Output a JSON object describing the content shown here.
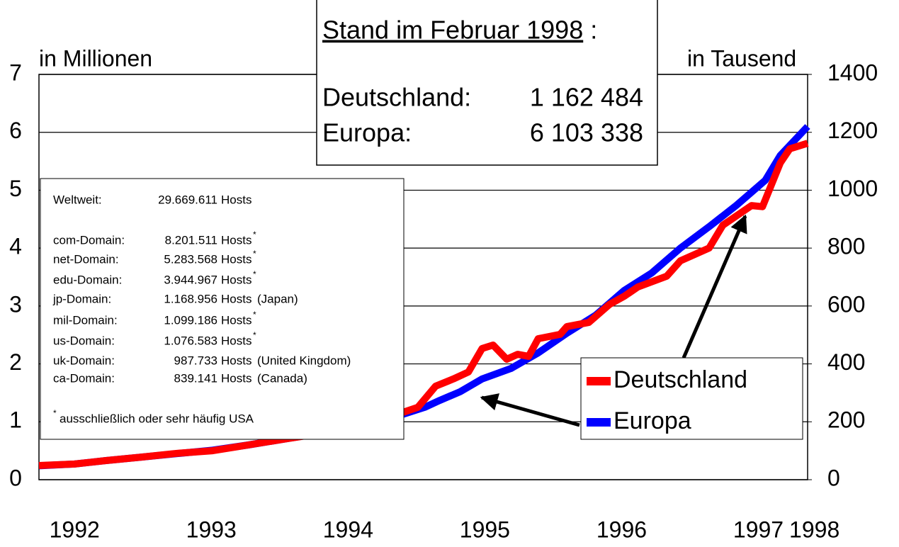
{
  "chart_data": {
    "type": "line",
    "ylabel": "in Millionen",
    "y2label": "in Tausend",
    "ylim": [
      0,
      7
    ],
    "yticks": [
      0,
      1,
      2,
      3,
      4,
      5,
      6,
      7
    ],
    "y2lim": [
      0,
      1400
    ],
    "y2ticks": [
      0,
      200,
      400,
      600,
      800,
      1000,
      1200,
      1400
    ],
    "xlim": [
      1991.74,
      1997.36
    ],
    "xticks": [
      {
        "value": 1992,
        "label": "1992"
      },
      {
        "value": 1993,
        "label": "1993"
      },
      {
        "value": 1994,
        "label": "1994"
      },
      {
        "value": 1995,
        "label": "1995"
      },
      {
        "value": 1996,
        "label": "1996"
      },
      {
        "value": 1997,
        "label": "1997"
      },
      {
        "value": 1997.41,
        "label": "1998"
      }
    ],
    "grid": true,
    "series": [
      {
        "name": "Europa",
        "color": "#0000ff",
        "x": [
          1991.74,
          1992,
          1992.23,
          1992.49,
          1992.75,
          1993.01,
          1993.27,
          1993.53,
          1993.79,
          1994.05,
          1994.31,
          1994.56,
          1994.67,
          1994.82,
          1994.98,
          1995.19,
          1995.39,
          1995.6,
          1995.81,
          1996.02,
          1996.22,
          1996.43,
          1996.64,
          1996.84,
          1997.05,
          1997.16,
          1997.36
        ],
        "values": [
          0.24,
          0.27,
          0.33,
          0.39,
          0.45,
          0.51,
          0.6,
          0.7,
          0.8,
          0.92,
          1.06,
          1.25,
          1.37,
          1.52,
          1.74,
          1.92,
          2.19,
          2.53,
          2.84,
          3.27,
          3.57,
          4.0,
          4.37,
          4.74,
          5.17,
          5.6,
          6.1
        ]
      },
      {
        "name": "Deutschland",
        "color": "#ff0000",
        "axis": "y2",
        "x": [
          1991.74,
          1992,
          1992.23,
          1992.49,
          1992.75,
          1993.01,
          1993.27,
          1993.53,
          1993.79,
          1994.05,
          1994.31,
          1994.51,
          1994.64,
          1994.77,
          1994.88,
          1994.98,
          1995.06,
          1995.16,
          1995.24,
          1995.32,
          1995.39,
          1995.55,
          1995.6,
          1995.76,
          1995.91,
          1996.02,
          1996.12,
          1996.33,
          1996.43,
          1996.64,
          1996.74,
          1996.95,
          1997.03,
          1997.16,
          1997.23,
          1997.36
        ],
        "values": [
          49,
          54,
          66,
          78,
          91,
          100,
          120,
          140,
          159,
          184,
          218,
          250,
          323,
          348,
          372,
          453,
          465,
          416,
          433,
          426,
          487,
          502,
          529,
          543,
          605,
          634,
          666,
          703,
          756,
          800,
          879,
          947,
          943,
          1094,
          1143,
          1162
        ]
      }
    ],
    "box": {
      "heading": "Stand im Februar 1998",
      "colon": ":",
      "rows": [
        [
          "Deutschland:",
          "1 162 484"
        ],
        [
          "Europa:",
          "6 103 338"
        ]
      ]
    },
    "info": {
      "rows": [
        [
          "Weltweit:",
          "29.669.611",
          "Hosts",
          ""
        ],
        [
          "com-Domain:",
          "8.201.511",
          "Hosts",
          "*"
        ],
        [
          "net-Domain:",
          "5.283.568",
          "Hosts",
          "*"
        ],
        [
          "edu-Domain:",
          "3.944.967",
          "Hosts",
          "*"
        ],
        [
          "jp-Domain:",
          "1.168.956",
          "Hosts",
          "(Japan)"
        ],
        [
          "mil-Domain:",
          "1.099.186",
          "Hosts",
          "*"
        ],
        [
          "us-Domain:",
          "1.076.583",
          "Hosts",
          "*"
        ],
        [
          "uk-Domain:",
          "987.733",
          "Hosts",
          "(United Kingdom)"
        ],
        [
          "ca-Domain:",
          "839.141",
          "Hosts",
          "(Canada)"
        ]
      ],
      "footnote": [
        "*",
        "ausschließlich oder sehr häufig USA"
      ]
    }
  }
}
